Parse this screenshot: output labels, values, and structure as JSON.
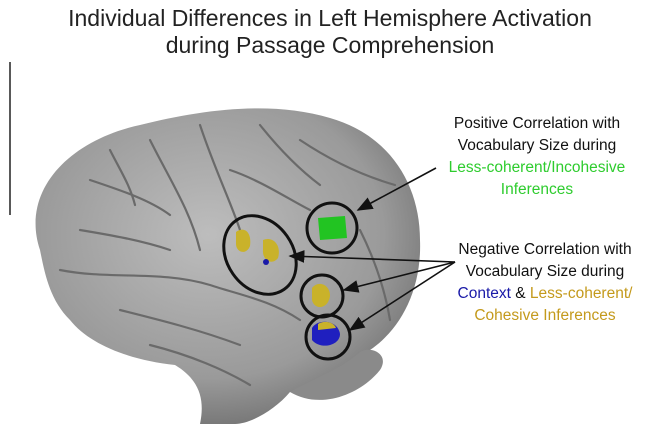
{
  "title": [
    "Individual Differences in Left Hemisphere  Activation",
    "during Passage Comprehension"
  ],
  "positive": {
    "lines": [
      "Positive Correlation with",
      "Vocabulary Size during",
      "Less-coherent/Incohesive",
      "Inferences"
    ]
  },
  "negative": {
    "lines": [
      "Negative Correlation with",
      "Vocabulary Size during"
    ],
    "line3": [
      "Context",
      "&",
      "Less-coherent/"
    ],
    "line4": "Cohesive Inferences"
  }
}
